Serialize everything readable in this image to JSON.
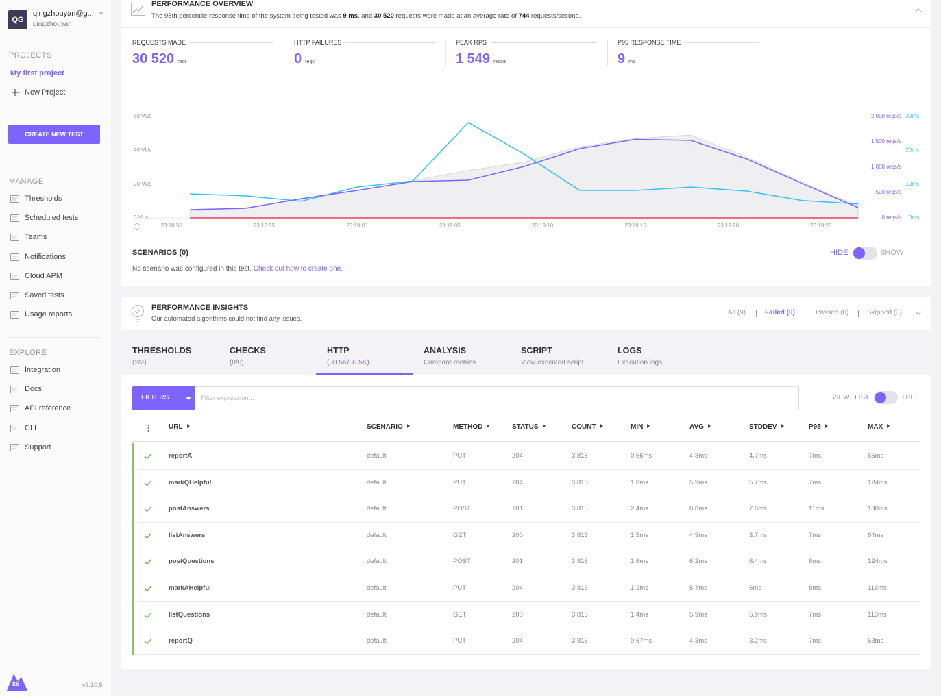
{
  "sidebar": {
    "initials": "QG",
    "email": "qingzhouyan@g...",
    "username": "qingzhouyan",
    "projects_heading": "PROJECTS",
    "current_project": "My first project",
    "new_project": "New Project",
    "create_button": "CREATE NEW TEST",
    "manage_heading": "MANAGE",
    "manage_items": [
      "Thresholds",
      "Scheduled tests",
      "Teams",
      "Notifications",
      "Cloud APM",
      "Saved tests",
      "Usage reports"
    ],
    "explore_heading": "EXPLORE",
    "explore_items": [
      "Integration",
      "Docs",
      "API reference",
      "CLI",
      "Support"
    ],
    "logo": "k6",
    "version": "v3.10.5"
  },
  "overview": {
    "title": "PERFORMANCE OVERVIEW",
    "summary": [
      "The 95th percentile response time of the system being tested was ",
      "9 ms",
      ", and ",
      "30 520",
      " requests were made at an average rate of ",
      "744",
      " requests/second."
    ],
    "metrics": [
      {
        "label": "REQUESTS MADE",
        "value": "30 520",
        "unit": "reqs"
      },
      {
        "label": "HTTP FAILURES",
        "value": "0",
        "unit": "reqs"
      },
      {
        "label": "PEAK RPS",
        "value": "1 549",
        "unit": "reqs/s"
      },
      {
        "label": "P95 RESPONSE TIME",
        "value": "9",
        "unit": "ms"
      }
    ]
  },
  "chart_data": {
    "type": "line",
    "x": [
      "23:18:51",
      "23:18:54",
      "23:18:57",
      "23:19:00",
      "23:19:03",
      "23:19:06",
      "23:19:09",
      "23:19:12",
      "23:19:15",
      "23:19:18",
      "23:19:21",
      "23:19:24",
      "23:19:27"
    ],
    "xlim": [
      "23:18:48",
      "23:19:27"
    ],
    "xticks": [
      "23:18:50",
      "23:18:55",
      "23:19:00",
      "23:19:05",
      "23:19:10",
      "23:19:15",
      "23:19:20",
      "23:19:25"
    ],
    "ylim": [
      0,
      60
    ],
    "yticks": [
      {
        "value": 0,
        "label": "0 VUs"
      },
      {
        "value": 20,
        "label": "20 VUs"
      },
      {
        "value": 40,
        "label": "40 VUs"
      },
      {
        "value": 60,
        "label": "60 VUs"
      }
    ],
    "y2lim": [
      0,
      2000
    ],
    "y2ticks": [
      {
        "value": 0,
        "label": "0 reqs/s"
      },
      {
        "value": 500,
        "label": "500 reqs/s"
      },
      {
        "value": 1000,
        "label": "1 000 reqs/s"
      },
      {
        "value": 1500,
        "label": "1 500 reqs/s"
      },
      {
        "value": 2000,
        "label": "2 000 reqs/s"
      }
    ],
    "y2color": "#7d64ff",
    "y3lim": [
      0,
      30
    ],
    "y3ticks": [
      {
        "value": 0,
        "label": "0ms"
      },
      {
        "value": 10,
        "label": "10ms"
      },
      {
        "value": 20,
        "label": "20ms"
      },
      {
        "value": 30,
        "label": "30ms"
      }
    ],
    "y3color": "#2bc4f0",
    "grid": false,
    "series": [
      {
        "color": "#d6d6dc",
        "fill": "#efeff2",
        "area": true,
        "axis": "y",
        "values": [
          4,
          6,
          11,
          16,
          22,
          28,
          33,
          42,
          47,
          49,
          36,
          21,
          7
        ]
      },
      {
        "color": "#e4405f",
        "axis": "y2",
        "values": [
          0,
          0,
          0,
          0,
          0,
          0,
          0,
          0,
          0,
          0,
          0,
          0,
          0
        ]
      },
      {
        "color": "#2bc4f0",
        "axis": "y3",
        "values": [
          7.1,
          6.5,
          4.9,
          9.1,
          10.9,
          28.2,
          18.9,
          8.1,
          8.1,
          9.1,
          7.9,
          5.1,
          4.1
        ]
      },
      {
        "color": "#7d64ff",
        "axis": "y2",
        "values": [
          162,
          189,
          378,
          540,
          716,
          743,
          1014,
          1365,
          1549,
          1527,
          1162,
          676,
          203
        ]
      }
    ]
  },
  "scenarios": {
    "title": "SCENARIOS (0)",
    "text": "No scenario was configured in this test. ",
    "link": "Check out how to create one.",
    "hide": "HIDE",
    "show": "SHOW"
  },
  "insights": {
    "title": "PERFORMANCE INSIGHTS",
    "subtitle": "Our automated algorithms could not find any issues.",
    "filters": [
      "All (9)",
      "Failed (0)",
      "Passed (6)",
      "Skipped (3)"
    ],
    "active_filter": 1
  },
  "tabs": [
    {
      "title": "THRESHOLDS",
      "subtitle": "(2/2)"
    },
    {
      "title": "CHECKS",
      "subtitle": "(0/0)"
    },
    {
      "title": "HTTP",
      "subtitle": "(30.5K/30.5K)"
    },
    {
      "title": "ANALYSIS",
      "subtitle": "Compare metrics"
    },
    {
      "title": "SCRIPT",
      "subtitle": "View executed script"
    },
    {
      "title": "LOGS",
      "subtitle": "Execution logs"
    }
  ],
  "active_tab": 2,
  "toolbar": {
    "filters": "FILTERS",
    "placeholder": "Filter expression...",
    "view": "VIEW",
    "list": "LIST",
    "tree": "TREE"
  },
  "table": {
    "columns": [
      "URL",
      "SCENARIO",
      "METHOD",
      "STATUS",
      "COUNT",
      "MIN",
      "AVG",
      "STDDEV",
      "P95",
      "MAX"
    ],
    "rows": [
      [
        "reportA",
        "default",
        "PUT",
        "204",
        "3 815",
        "0.56ms",
        "4.3ms",
        "4.7ms",
        "7ms",
        "65ms"
      ],
      [
        "markQHelpful",
        "default",
        "PUT",
        "204",
        "3 815",
        "1.8ms",
        "5.9ms",
        "5.7ms",
        "7ms",
        "124ms"
      ],
      [
        "postAnswers",
        "default",
        "POST",
        "201",
        "3 815",
        "2.4ms",
        "8.8ms",
        "7.6ms",
        "11ms",
        "130ms"
      ],
      [
        "listAnswers",
        "default",
        "GET",
        "200",
        "3 815",
        "1.5ms",
        "4.9ms",
        "3.7ms",
        "7ms",
        "64ms"
      ],
      [
        "postQuestions",
        "default",
        "POST",
        "201",
        "3 815",
        "1.6ms",
        "6.2ms",
        "6.4ms",
        "8ms",
        "124ms"
      ],
      [
        "markAHelpful",
        "default",
        "PUT",
        "204",
        "3 815",
        "1.2ms",
        "5.7ms",
        "6ms",
        "8ms",
        "116ms"
      ],
      [
        "listQuestions",
        "default",
        "GET",
        "200",
        "3 815",
        "1.4ms",
        "5.9ms",
        "5.9ms",
        "7ms",
        "113ms"
      ],
      [
        "reportQ",
        "default",
        "PUT",
        "204",
        "3 815",
        "0.67ms",
        "4.3ms",
        "3.2ms",
        "7ms",
        "53ms"
      ]
    ]
  }
}
